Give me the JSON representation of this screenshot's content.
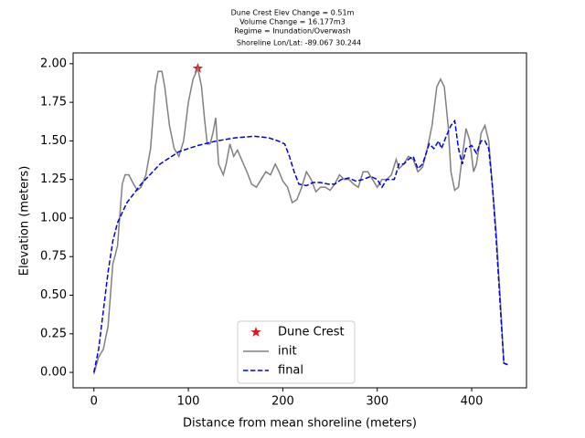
{
  "chart_data": {
    "type": "line",
    "title_lines": [
      "Dune Crest Elev Change = 0.51m",
      "Volume Change = 16.177m3",
      "Regime = Inundation/Overwash",
      "Shoreline Lon/Lat: -89.067 30.244"
    ],
    "x_label": "Distance from mean shoreline (meters)",
    "y_label": "Elevation (meters)",
    "xlim": [
      -22,
      458
    ],
    "ylim": [
      -0.1,
      2.07
    ],
    "xticks": [
      0,
      100,
      200,
      300,
      400
    ],
    "yticks": [
      {
        "value": 0,
        "label": "0.00"
      },
      {
        "value": 0.25,
        "label": "0.25"
      },
      {
        "value": 0.5,
        "label": "0.50"
      },
      {
        "value": 0.75,
        "label": "0.75"
      },
      {
        "value": 1,
        "label": "1.00"
      },
      {
        "value": 1.25,
        "label": "1.25"
      },
      {
        "value": 1.5,
        "label": "1.50"
      },
      {
        "value": 1.75,
        "label": "1.75"
      },
      {
        "value": 2,
        "label": "2.00"
      }
    ],
    "legend": "lower center",
    "series": [
      {
        "name": "Dune Crest",
        "style": "star",
        "color": "#e8141b",
        "x": [
          110
        ],
        "values": [
          1.97
        ]
      },
      {
        "name": "init",
        "style": "solid",
        "color": "#808080",
        "x": [
          0,
          5,
          10,
          15,
          20,
          25,
          30,
          33,
          37,
          42,
          46,
          50,
          55,
          60,
          65,
          68,
          72,
          75,
          80,
          85,
          90,
          95,
          100,
          105,
          110,
          114,
          117,
          120,
          123,
          126,
          129,
          132,
          137,
          140,
          144,
          148,
          152,
          157,
          162,
          167,
          172,
          177,
          182,
          187,
          192,
          196,
          200,
          205,
          210,
          215,
          220,
          225,
          230,
          235,
          240,
          245,
          250,
          255,
          260,
          265,
          270,
          275,
          280,
          285,
          290,
          295,
          300,
          305,
          310,
          315,
          320,
          323,
          328,
          333,
          338,
          343,
          348,
          353,
          358,
          363,
          367,
          371,
          375,
          378,
          382,
          386,
          390,
          394,
          398,
          402,
          405,
          410,
          414,
          418,
          422,
          426,
          430,
          434,
          438
        ],
        "values": [
          -0.01,
          0.1,
          0.15,
          0.3,
          0.7,
          0.82,
          1.22,
          1.28,
          1.28,
          1.22,
          1.18,
          1.2,
          1.28,
          1.45,
          1.85,
          1.95,
          1.95,
          1.85,
          1.6,
          1.45,
          1.4,
          1.5,
          1.75,
          1.9,
          1.97,
          1.85,
          1.65,
          1.48,
          1.48,
          1.55,
          1.65,
          1.35,
          1.28,
          1.35,
          1.48,
          1.4,
          1.44,
          1.37,
          1.3,
          1.22,
          1.2,
          1.25,
          1.3,
          1.28,
          1.35,
          1.3,
          1.24,
          1.2,
          1.1,
          1.12,
          1.2,
          1.3,
          1.25,
          1.17,
          1.2,
          1.2,
          1.18,
          1.22,
          1.28,
          1.25,
          1.25,
          1.22,
          1.2,
          1.3,
          1.3,
          1.25,
          1.2,
          1.25,
          1.25,
          1.28,
          1.38,
          1.32,
          1.35,
          1.4,
          1.38,
          1.3,
          1.33,
          1.45,
          1.6,
          1.85,
          1.9,
          1.85,
          1.6,
          1.3,
          1.18,
          1.2,
          1.4,
          1.58,
          1.5,
          1.3,
          1.35,
          1.55,
          1.6,
          1.5,
          1.2,
          0.9,
          0.5,
          0.06,
          0.05
        ]
      },
      {
        "name": "final",
        "style": "dashed",
        "color": "#0000e0",
        "x": [
          0,
          5,
          10,
          15,
          20,
          25,
          35,
          50,
          70,
          90,
          110,
          130,
          150,
          170,
          185,
          195,
          202,
          207,
          212,
          217,
          225,
          232,
          240,
          248,
          255,
          262,
          270,
          277,
          285,
          293,
          300,
          305,
          310,
          318,
          323,
          328,
          333,
          338,
          343,
          348,
          355,
          360,
          365,
          368,
          373,
          378,
          382,
          386,
          390,
          394,
          400,
          405,
          410,
          414,
          418,
          422,
          426,
          430,
          434,
          438
        ],
        "values": [
          0,
          0.15,
          0.4,
          0.65,
          0.85,
          0.97,
          1.1,
          1.22,
          1.35,
          1.43,
          1.47,
          1.5,
          1.52,
          1.53,
          1.52,
          1.5,
          1.48,
          1.4,
          1.3,
          1.22,
          1.21,
          1.23,
          1.23,
          1.22,
          1.22,
          1.25,
          1.26,
          1.24,
          1.25,
          1.27,
          1.25,
          1.2,
          1.25,
          1.25,
          1.35,
          1.35,
          1.38,
          1.4,
          1.32,
          1.35,
          1.48,
          1.45,
          1.5,
          1.45,
          1.53,
          1.6,
          1.63,
          1.45,
          1.35,
          1.45,
          1.47,
          1.42,
          1.5,
          1.5,
          1.45,
          1.2,
          0.85,
          0.45,
          0.06,
          0.05
        ]
      }
    ]
  }
}
